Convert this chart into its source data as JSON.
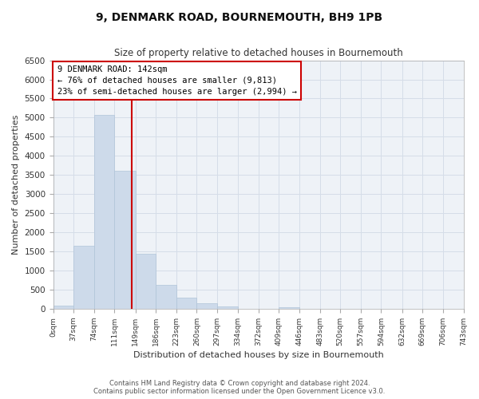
{
  "title": "9, DENMARK ROAD, BOURNEMOUTH, BH9 1PB",
  "subtitle": "Size of property relative to detached houses in Bournemouth",
  "xlabel": "Distribution of detached houses by size in Bournemouth",
  "ylabel": "Number of detached properties",
  "bar_color": "#cddaea",
  "bar_edge_color": "#b0c4d8",
  "bin_edges": [
    0,
    37,
    74,
    111,
    149,
    186,
    223,
    260,
    297,
    334,
    372,
    409,
    446,
    483,
    520,
    557,
    594,
    632,
    669,
    706,
    743
  ],
  "bar_heights": [
    75,
    1650,
    5080,
    3600,
    1430,
    620,
    300,
    145,
    60,
    0,
    0,
    50,
    0,
    0,
    0,
    0,
    0,
    0,
    0,
    0
  ],
  "tick_labels": [
    "0sqm",
    "37sqm",
    "74sqm",
    "111sqm",
    "149sqm",
    "186sqm",
    "223sqm",
    "260sqm",
    "297sqm",
    "334sqm",
    "372sqm",
    "409sqm",
    "446sqm",
    "483sqm",
    "520sqm",
    "557sqm",
    "594sqm",
    "632sqm",
    "669sqm",
    "706sqm",
    "743sqm"
  ],
  "ylim": [
    0,
    6500
  ],
  "yticks": [
    0,
    500,
    1000,
    1500,
    2000,
    2500,
    3000,
    3500,
    4000,
    4500,
    5000,
    5500,
    6000,
    6500
  ],
  "vline_x": 142,
  "annotation_title": "9 DENMARK ROAD: 142sqm",
  "annotation_line1": "← 76% of detached houses are smaller (9,813)",
  "annotation_line2": "23% of semi-detached houses are larger (2,994) →",
  "annotation_box_color": "#ffffff",
  "annotation_box_edge": "#cc0000",
  "vline_color": "#cc0000",
  "grid_color": "#d5dde8",
  "footer1": "Contains HM Land Registry data © Crown copyright and database right 2024.",
  "footer2": "Contains public sector information licensed under the Open Government Licence v3.0.",
  "background_color": "#ffffff",
  "plot_bg_color": "#eef2f7"
}
